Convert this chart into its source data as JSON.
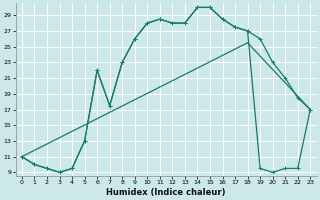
{
  "xlabel": "Humidex (Indice chaleur)",
  "bg_color": "#cce8e8",
  "grid_color": "#ffffff",
  "line_color": "#1a7a6e",
  "xlim": [
    -0.5,
    23.5
  ],
  "ylim": [
    8.5,
    30.5
  ],
  "yticks": [
    9,
    11,
    13,
    15,
    17,
    19,
    21,
    23,
    25,
    27,
    29
  ],
  "xticks": [
    0,
    1,
    2,
    3,
    4,
    5,
    6,
    7,
    8,
    9,
    10,
    11,
    12,
    13,
    14,
    15,
    16,
    17,
    18,
    19,
    20,
    21,
    22,
    23
  ],
  "curve1_x": [
    0,
    1,
    2,
    3,
    4,
    5,
    6,
    7,
    8,
    9,
    10,
    11,
    12,
    13,
    14,
    15,
    16,
    17,
    18,
    19,
    20,
    21,
    22,
    23
  ],
  "curve1_y": [
    11,
    10,
    9.5,
    9,
    9.5,
    13,
    22,
    17.5,
    23,
    26,
    28,
    28.5,
    28,
    28,
    30,
    30,
    28.5,
    27.5,
    27,
    26,
    23,
    21,
    18.5,
    17
  ],
  "curve2_x": [
    0,
    1,
    2,
    3,
    4,
    5,
    6,
    7,
    8,
    9,
    10,
    11,
    12,
    13,
    14,
    15,
    16,
    17,
    18,
    19,
    20,
    21,
    22,
    23
  ],
  "curve2_y": [
    11,
    10,
    9.5,
    9,
    9.5,
    13,
    22,
    17.5,
    23,
    26,
    28,
    28.5,
    28,
    28,
    30,
    30,
    28.5,
    27.5,
    27,
    9.5,
    9,
    9.5,
    9.5,
    17
  ],
  "curve3_x": [
    0,
    18,
    23
  ],
  "curve3_y": [
    11,
    25.5,
    17
  ]
}
